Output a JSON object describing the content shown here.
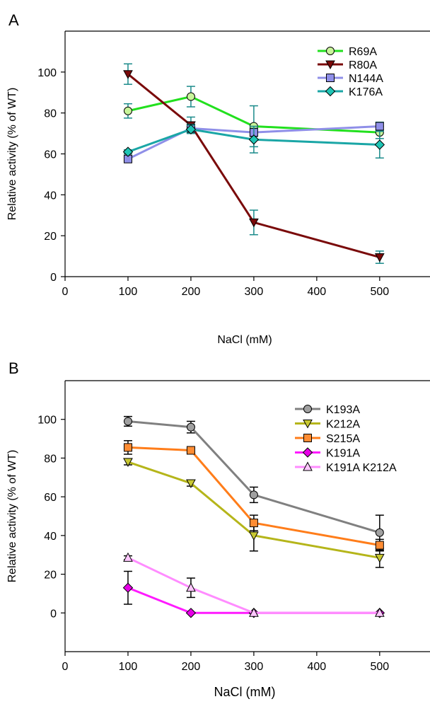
{
  "chart_data": [
    {
      "panel_label": "A",
      "type": "line",
      "xlabel": "NaCl (mM)",
      "ylabel": "Relative activity (% of WT)",
      "xlim": [
        0,
        580
      ],
      "ylim": [
        0,
        120
      ],
      "x_ticks": [
        "0",
        "100",
        "200",
        "300",
        "400",
        "500"
      ],
      "y_ticks": [
        "0",
        "20",
        "40",
        "60",
        "80",
        "100"
      ],
      "legend_position": "top-right",
      "grid": false,
      "series": [
        {
          "name": "R69A",
          "marker": "circle",
          "color": "#22e01e",
          "fill": "#c8f59a",
          "x": [
            100,
            200,
            300,
            500
          ],
          "y": [
            81,
            88,
            73.5,
            70.5
          ],
          "err": [
            3.5,
            5,
            10,
            3
          ]
        },
        {
          "name": "R80A",
          "marker": "triangle-down",
          "color": "#7a0a0a",
          "fill": "#7a0a0a",
          "x": [
            100,
            200,
            300,
            500
          ],
          "y": [
            99,
            74,
            26.5,
            9.5
          ],
          "err": [
            5,
            4,
            6,
            3
          ]
        },
        {
          "name": "N144A",
          "marker": "square",
          "color": "#8f8fe8",
          "fill": "#8f8fe8",
          "x": [
            100,
            200,
            300,
            500
          ],
          "y": [
            57.5,
            72.5,
            70.5,
            73.5
          ],
          "err": [
            1,
            2,
            2,
            2
          ]
        },
        {
          "name": "K176A",
          "marker": "diamond",
          "color": "#1aa6a6",
          "fill": "#1fc5b5",
          "x": [
            100,
            200,
            300,
            500
          ],
          "y": [
            61,
            72,
            67,
            64.5
          ],
          "err": [
            1,
            2,
            6.5,
            6.5
          ]
        }
      ]
    },
    {
      "panel_label": "B",
      "type": "line",
      "xlabel": "NaCl (mM)",
      "ylabel": "Relative activity (% of WT)",
      "xlim": [
        0,
        580
      ],
      "ylim": [
        -20,
        120
      ],
      "x_ticks": [
        "0",
        "100",
        "200",
        "300",
        "400",
        "500"
      ],
      "y_ticks": [
        "0",
        "20",
        "40",
        "60",
        "80",
        "100"
      ],
      "legend_position": "top-right",
      "grid": false,
      "series": [
        {
          "name": "K193A",
          "marker": "circle",
          "color": "#808080",
          "fill": "#a0a0a0",
          "x": [
            100,
            200,
            300,
            500
          ],
          "y": [
            99,
            96,
            61,
            41.5
          ],
          "err": [
            2.5,
            3,
            4,
            9
          ]
        },
        {
          "name": "K212A",
          "marker": "triangle-down",
          "color": "#b5b51a",
          "fill": "#c8c832",
          "x": [
            100,
            200,
            300,
            500
          ],
          "y": [
            78,
            67,
            40,
            28.5
          ],
          "err": [
            1.5,
            1.5,
            8,
            5
          ]
        },
        {
          "name": "S215A",
          "marker": "square",
          "color": "#ff7d1a",
          "fill": "#ff8c33",
          "x": [
            100,
            200,
            300,
            500
          ],
          "y": [
            85.5,
            84,
            46.5,
            35
          ],
          "err": [
            3.5,
            1,
            4,
            3
          ]
        },
        {
          "name": "K191A",
          "marker": "diamond",
          "color": "#ff1aff",
          "fill": "#e600e6",
          "x": [
            100,
            200,
            300,
            500
          ],
          "y": [
            13,
            0,
            0,
            0
          ],
          "err": [
            8.5,
            0,
            0,
            0
          ]
        },
        {
          "name": "K191A  K212A",
          "marker": "triangle-up",
          "color": "#ff8cff",
          "fill": "#ffc8ff",
          "x": [
            100,
            200,
            300,
            500
          ],
          "y": [
            28.5,
            13,
            0,
            0
          ],
          "err": [
            1,
            5,
            0,
            0
          ]
        }
      ]
    }
  ]
}
